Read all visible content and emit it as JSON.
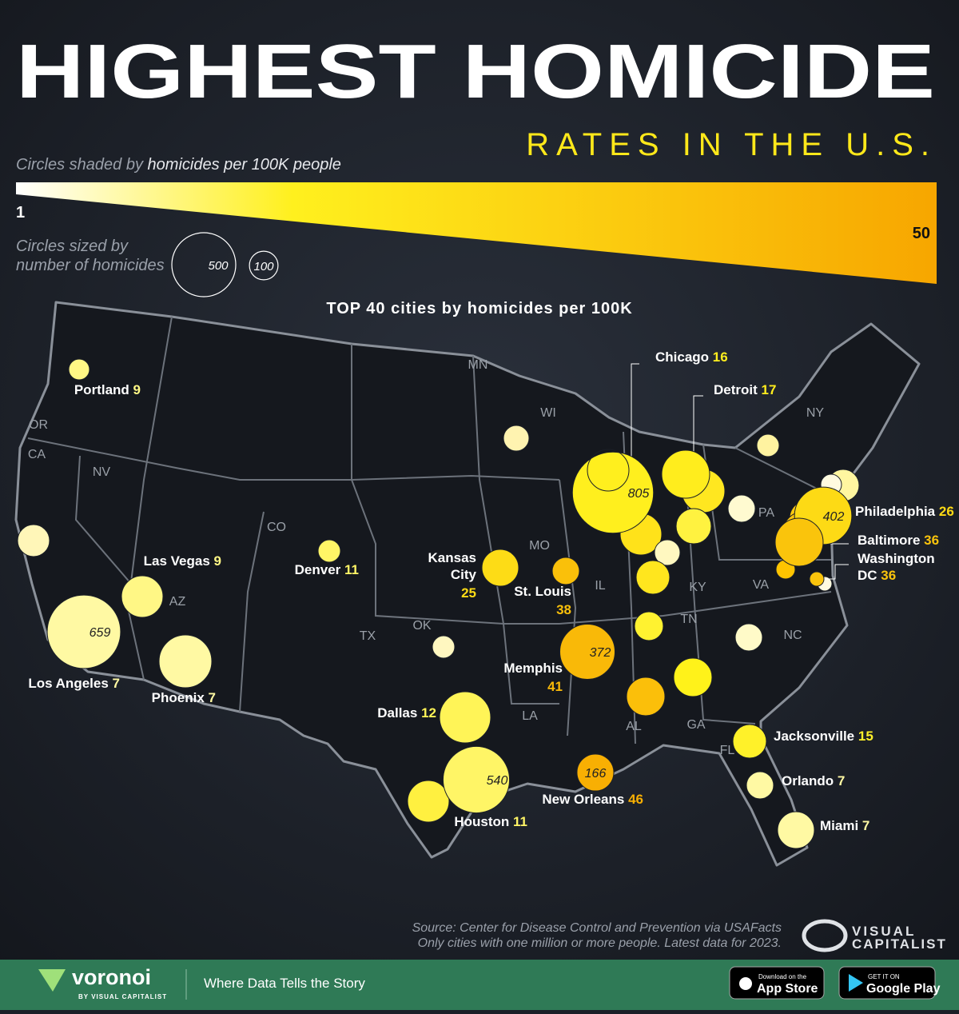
{
  "header": {
    "title": "HIGHEST HOMICIDE",
    "subtitle": "RATES IN THE U.S."
  },
  "legend": {
    "color_label_plain": "Circles shaded by",
    "color_label_em": "homicides per 100K people",
    "color_min": 1,
    "color_max": 50,
    "size_label": [
      "Circles sized by",
      "number of homicides"
    ],
    "size_values": [
      500,
      100
    ]
  },
  "map_title": "TOP 40 cities by homicides per 100K",
  "states": [
    "OR",
    "CA",
    "NV",
    "AZ",
    "CO",
    "MN",
    "WI",
    "MO",
    "IL",
    "KY",
    "TN",
    "OK",
    "TX",
    "LA",
    "AL",
    "GA",
    "FL",
    "NC",
    "VA",
    "PA",
    "NY"
  ],
  "cities": [
    {
      "name": "Portland",
      "rate": 9
    },
    {
      "name": "Las Vegas",
      "rate": 9
    },
    {
      "name": "Denver",
      "rate": 11
    },
    {
      "name": "Los Angeles",
      "rate": 7,
      "homicides": 659
    },
    {
      "name": "Phoenix",
      "rate": 7
    },
    {
      "name": [
        "Kansas",
        "City"
      ],
      "rate": 25
    },
    {
      "name": "St. Louis",
      "rate": 38
    },
    {
      "name": "Memphis",
      "rate": 41,
      "homicides": 372
    },
    {
      "name": "Dallas",
      "rate": 12
    },
    {
      "name": "Houston",
      "rate": 11,
      "homicides": 540
    },
    {
      "name": "New Orleans",
      "rate": 46,
      "homicides": 166
    },
    {
      "name": "Chicago",
      "rate": 16,
      "homicides": 805
    },
    {
      "name": "Detroit",
      "rate": 17
    },
    {
      "name": "Philadelphia",
      "rate": 26,
      "homicides": 402
    },
    {
      "name": "Baltimore",
      "rate": 36
    },
    {
      "name": [
        "Washington",
        "DC"
      ],
      "rate": 36
    },
    {
      "name": "Jacksonville",
      "rate": 15
    },
    {
      "name": "Orlando",
      "rate": 7
    },
    {
      "name": "Miami",
      "rate": 7
    }
  ],
  "source": [
    "Source: Center for Disease Control and Prevention via USAFacts",
    "Only cities with one million or more people. Latest data for 2023."
  ],
  "logo": [
    "VISUAL",
    "CAPITALIST"
  ],
  "footer": {
    "brand": "voronoi",
    "brand_sub": "BY VISUAL CAPITALIST",
    "tagline": "Where Data Tells the Story",
    "app_store": [
      "Download on the",
      "App Store"
    ],
    "google_play": [
      "GET IT ON",
      "Google Play"
    ]
  }
}
